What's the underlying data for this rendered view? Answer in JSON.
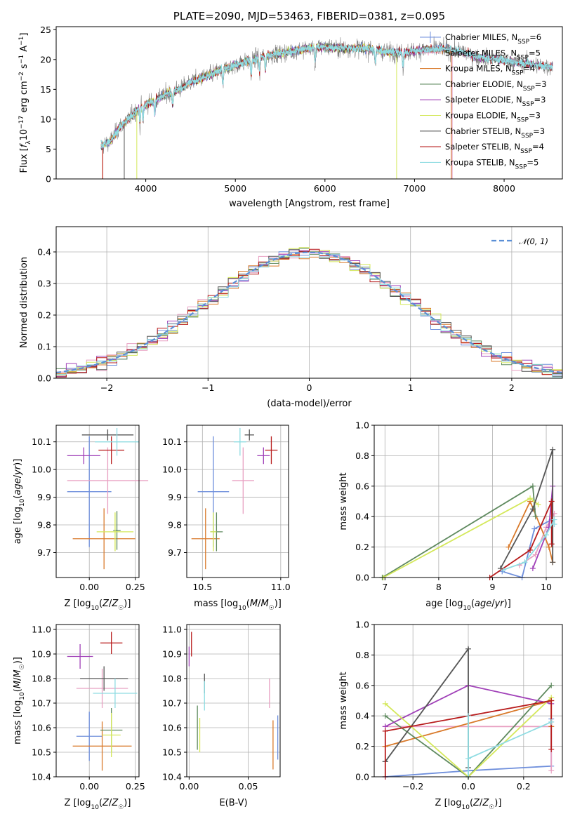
{
  "colors": {
    "Chabrier MILES": "#6f8fdc",
    "Salpeter MILES": "#e8a0c2",
    "Kroupa MILES": "#d97a2b",
    "Chabrier ELODIE": "#5f8a5f",
    "Salpeter ELODIE": "#a040b8",
    "Kroupa ELODIE": "#d4e85a",
    "Chabrier STELIB": "#555555",
    "Salpeter STELIB": "#b81c1c",
    "Kroupa STELIB": "#8fdce2"
  },
  "chart_data": [
    {
      "id": "spectrum",
      "type": "line",
      "title": "PLATE=2090, MJD=53463, FIBERID=0381, z=0.095",
      "xlabel": "wavelength [Angstrom, rest frame]",
      "ylabel": "Flux [fλ10⁻¹⁷ erg cm⁻² s⁻¹ A⁻¹]",
      "xlim": [
        3000,
        8650
      ],
      "ylim": [
        0,
        25.5
      ],
      "xticks": [
        4000,
        5000,
        6000,
        7000,
        8000
      ],
      "yticks": [
        0,
        5,
        10,
        15,
        20,
        25
      ],
      "grid": false,
      "legend_position": "top-right",
      "legend": [
        "Chabrier MILES, N_SSP=6",
        "Salpeter MILES, N_SSP=5",
        "Kroupa MILES, N_SSP=4",
        "Chabrier ELODIE, N_SSP=3",
        "Salpeter ELODIE, N_SSP=3",
        "Kroupa ELODIE, N_SSP=3",
        "Chabrier STELIB, N_SSP=3",
        "Salpeter STELIB, N_SSP=4",
        "Kroupa STELIB, N_SSP=5"
      ],
      "continuum": {
        "x": [
          3500,
          3600,
          3700,
          3800,
          3900,
          4000,
          4100,
          4200,
          4300,
          4400,
          4500,
          4700,
          4900,
          5100,
          5300,
          5500,
          5700,
          5900,
          6100,
          6300,
          6500,
          6700,
          6900,
          7100,
          7300,
          7500,
          7700,
          7900,
          8100,
          8300,
          8500
        ],
        "y": [
          5.5,
          6.2,
          8.5,
          10.0,
          11.5,
          12.5,
          13.2,
          14.0,
          14.6,
          15.2,
          16.2,
          17.3,
          18.6,
          19.5,
          20.5,
          21.0,
          21.6,
          22.1,
          22.0,
          21.9,
          21.8,
          21.3,
          21.2,
          21.6,
          21.8,
          21.4,
          20.4,
          20.1,
          19.6,
          19.2,
          18.8
        ]
      }
    },
    {
      "id": "residuals",
      "type": "line",
      "xlabel": "(data-model)/error",
      "ylabel": "Normed distribution",
      "xlim": [
        -2.5,
        2.5
      ],
      "ylim": [
        0,
        0.48
      ],
      "xticks": [
        -2,
        -1,
        0,
        1,
        2
      ],
      "yticks": [
        0.0,
        0.1,
        0.2,
        0.3,
        0.4
      ],
      "grid": true,
      "legend_position": "top-right",
      "legend": [
        "𝒩(0, 1)"
      ],
      "normal_curve": {
        "mean": 0,
        "sigma": 1
      }
    },
    {
      "id": "age-vs-Z",
      "type": "scatter",
      "xlabel": "Z [log10(Z/Z☉)]",
      "ylabel": "age  [log10(age/yr)]",
      "xlim": [
        -0.18,
        0.27
      ],
      "ylim": [
        9.61,
        10.16
      ],
      "xticks": [
        0.0,
        0.25
      ],
      "xticklabels": [
        "0.00",
        "0.25"
      ],
      "yticks": [
        9.7,
        9.8,
        9.9,
        10.0,
        10.1
      ],
      "grid": true,
      "points": [
        {
          "model": "Chabrier MILES",
          "x": 0.0,
          "y": 9.92,
          "xerr": 0.12,
          "yerr": 0.2
        },
        {
          "model": "Salpeter MILES",
          "x": 0.1,
          "y": 9.96,
          "xerr": 0.22,
          "yerr": 0.12
        },
        {
          "model": "Kroupa MILES",
          "x": 0.08,
          "y": 9.75,
          "xerr": 0.17,
          "yerr": 0.11
        },
        {
          "model": "Chabrier ELODIE",
          "x": 0.15,
          "y": 9.78,
          "xerr": 0.02,
          "yerr": 0.07
        },
        {
          "model": "Salpeter ELODIE",
          "x": -0.03,
          "y": 10.05,
          "xerr": 0.09,
          "yerr": 0.03
        },
        {
          "model": "Kroupa ELODIE",
          "x": 0.14,
          "y": 9.775,
          "xerr": 0.1,
          "yerr": 0.07
        },
        {
          "model": "Chabrier STELIB",
          "x": 0.1,
          "y": 10.125,
          "xerr": 0.14,
          "yerr": 0.02
        },
        {
          "model": "Salpeter STELIB",
          "x": 0.12,
          "y": 10.07,
          "xerr": 0.07,
          "yerr": 0.05
        },
        {
          "model": "Kroupa STELIB",
          "x": 0.15,
          "y": 10.1,
          "xerr": 0.12,
          "yerr": 0.05
        }
      ]
    },
    {
      "id": "age-vs-mass",
      "type": "scatter",
      "xlabel": "mass [log10(M/M☉)]",
      "ylabel": "",
      "xlim": [
        10.4,
        11.05
      ],
      "ylim": [
        9.61,
        10.16
      ],
      "xticks": [
        10.5,
        11.0
      ],
      "yticks": [
        9.7,
        9.8,
        9.9,
        10.0,
        10.1
      ],
      "grid": true,
      "points": [
        {
          "model": "Chabrier MILES",
          "x": 10.57,
          "y": 9.92,
          "xerr": 0.1,
          "yerr": 0.2
        },
        {
          "model": "Salpeter MILES",
          "x": 10.76,
          "y": 9.96,
          "xerr": 0.07,
          "yerr": 0.12
        },
        {
          "model": "Kroupa MILES",
          "x": 10.52,
          "y": 9.75,
          "xerr": 0.09,
          "yerr": 0.11
        },
        {
          "model": "Chabrier ELODIE",
          "x": 10.59,
          "y": 9.775,
          "xerr": 0.04,
          "yerr": 0.07
        },
        {
          "model": "Salpeter ELODIE",
          "x": 10.89,
          "y": 10.05,
          "xerr": 0.04,
          "yerr": 0.03
        },
        {
          "model": "Kroupa ELODIE",
          "x": 10.57,
          "y": 9.775,
          "xerr": 0.02,
          "yerr": 0.07
        },
        {
          "model": "Chabrier STELIB",
          "x": 10.8,
          "y": 10.125,
          "xerr": 0.03,
          "yerr": 0.02
        },
        {
          "model": "Salpeter STELIB",
          "x": 10.94,
          "y": 10.07,
          "xerr": 0.04,
          "yerr": 0.05
        },
        {
          "model": "Kroupa STELIB",
          "x": 10.74,
          "y": 10.1,
          "xerr": 0.04,
          "yerr": 0.05
        }
      ]
    },
    {
      "id": "weight-vs-age",
      "type": "line",
      "xlabel": "age  [log10(age/yr)]",
      "ylabel": "mass weight",
      "xlim": [
        6.8,
        10.3
      ],
      "ylim": [
        0,
        1.0
      ],
      "xticks": [
        7,
        8,
        9,
        10
      ],
      "yticks": [
        0.0,
        0.2,
        0.4,
        0.6,
        0.8,
        1.0
      ],
      "grid": true,
      "series": [
        {
          "model": "Chabrier MILES",
          "x": [
            9.18,
            9.55,
            9.78,
            10.1
          ],
          "y": [
            0.04,
            0.0,
            0.32,
            0.38
          ]
        },
        {
          "model": "Salpeter MILES",
          "x": [
            9.5,
            9.8,
            10.0,
            10.15
          ],
          "y": [
            0.08,
            0.15,
            0.33,
            0.42
          ]
        },
        {
          "model": "Kroupa MILES",
          "x": [
            9.3,
            9.7,
            10.05,
            10.12
          ],
          "y": [
            0.2,
            0.5,
            0.2,
            0.1
          ]
        },
        {
          "model": "Chabrier ELODIE",
          "x": [
            6.95,
            9.75,
            9.8
          ],
          "y": [
            0.0,
            0.6,
            0.4
          ]
        },
        {
          "model": "Salpeter ELODIE",
          "x": [
            9.75,
            10.05,
            10.12
          ],
          "y": [
            0.06,
            0.33,
            0.6
          ]
        },
        {
          "model": "Kroupa ELODIE",
          "x": [
            6.97,
            9.7,
            9.85
          ],
          "y": [
            0.0,
            0.52,
            0.48
          ]
        },
        {
          "model": "Chabrier STELIB",
          "x": [
            9.15,
            9.75,
            10.12,
            10.12
          ],
          "y": [
            0.06,
            0.45,
            0.84,
            0.1
          ]
        },
        {
          "model": "Salpeter STELIB",
          "x": [
            8.95,
            9.7,
            10.1,
            10.1
          ],
          "y": [
            0.0,
            0.18,
            0.5,
            0.22
          ]
        },
        {
          "model": "Kroupa STELIB",
          "x": [
            9.2,
            9.6,
            10.0,
            10.15,
            10.15
          ],
          "y": [
            0.05,
            0.1,
            0.28,
            0.38,
            0.35
          ]
        }
      ]
    },
    {
      "id": "mass-vs-Z",
      "type": "scatter",
      "xlabel": "Z [log10(Z/Z☉)]",
      "ylabel": "mass [log10(M/M☉)]",
      "xlim": [
        -0.18,
        0.27
      ],
      "ylim": [
        10.4,
        11.02
      ],
      "xticks": [
        0.0,
        0.25
      ],
      "xticklabels": [
        "0.00",
        "0.25"
      ],
      "yticks": [
        10.4,
        10.5,
        10.6,
        10.7,
        10.8,
        10.9,
        11.0
      ],
      "grid": true,
      "points": [
        {
          "model": "Chabrier MILES",
          "x": 0.0,
          "y": 10.565,
          "xerr": 0.07,
          "yerr": 0.1
        },
        {
          "model": "Salpeter MILES",
          "x": 0.07,
          "y": 10.76,
          "xerr": 0.14,
          "yerr": 0.08
        },
        {
          "model": "Kroupa MILES",
          "x": 0.07,
          "y": 10.525,
          "xerr": 0.16,
          "yerr": 0.1
        },
        {
          "model": "Chabrier ELODIE",
          "x": 0.12,
          "y": 10.59,
          "xerr": 0.06,
          "yerr": 0.09
        },
        {
          "model": "Salpeter ELODIE",
          "x": -0.05,
          "y": 10.89,
          "xerr": 0.07,
          "yerr": 0.05
        },
        {
          "model": "Kroupa ELODIE",
          "x": 0.12,
          "y": 10.57,
          "xerr": 0.05,
          "yerr": 0.09
        },
        {
          "model": "Chabrier STELIB",
          "x": 0.08,
          "y": 10.8,
          "xerr": 0.13,
          "yerr": 0.05
        },
        {
          "model": "Salpeter STELIB",
          "x": 0.12,
          "y": 10.945,
          "xerr": 0.06,
          "yerr": 0.045
        },
        {
          "model": "Kroupa STELIB",
          "x": 0.14,
          "y": 10.74,
          "xerr": 0.12,
          "yerr": 0.06
        }
      ]
    },
    {
      "id": "mass-vs-EBV",
      "type": "scatter",
      "xlabel": "E(B-V)",
      "ylabel": "",
      "xlim": [
        -0.002,
        0.077
      ],
      "ylim": [
        10.4,
        11.02
      ],
      "xticks": [
        0.0,
        0.05
      ],
      "xticklabels": [
        "0.00",
        "0.05"
      ],
      "yticks": [
        10.4,
        10.5,
        10.6,
        10.7,
        10.8,
        10.9,
        11.0
      ],
      "grid": true,
      "points": [
        {
          "model": "Chabrier MILES",
          "x": 0.075,
          "y": 10.56,
          "yerr": 0.09
        },
        {
          "model": "Salpeter MILES",
          "x": 0.068,
          "y": 10.74,
          "yerr": 0.06
        },
        {
          "model": "Kroupa MILES",
          "x": 0.071,
          "y": 10.53,
          "yerr": 0.1
        },
        {
          "model": "Chabrier ELODIE",
          "x": 0.007,
          "y": 10.6,
          "yerr": 0.09
        },
        {
          "model": "Salpeter ELODIE",
          "x": 0.0,
          "y": 10.89,
          "yerr": 0.04
        },
        {
          "model": "Kroupa ELODIE",
          "x": 0.009,
          "y": 10.57,
          "yerr": 0.07
        },
        {
          "model": "Chabrier STELIB",
          "x": 0.013,
          "y": 10.78,
          "yerr": 0.04
        },
        {
          "model": "Salpeter STELIB",
          "x": 0.002,
          "y": 10.94,
          "yerr": 0.05
        },
        {
          "model": "Kroupa STELIB",
          "x": 0.013,
          "y": 10.73,
          "yerr": 0.06
        }
      ]
    },
    {
      "id": "weight-vs-Z",
      "type": "line",
      "xlabel": "Z [log10(Z/Z☉)]",
      "ylabel": "mass weight",
      "xlim": [
        -0.34,
        0.34
      ],
      "ylim": [
        0,
        1.0
      ],
      "xticks": [
        -0.2,
        0.0,
        0.2
      ],
      "yticks": [
        0.0,
        0.2,
        0.4,
        0.6,
        0.8,
        1.0
      ],
      "grid": true,
      "series": [
        {
          "model": "Chabrier MILES",
          "x": [
            -0.3,
            0.0,
            0.3,
            0.3
          ],
          "y": [
            0.0,
            0.04,
            0.07,
            0.38
          ]
        },
        {
          "model": "Salpeter MILES",
          "x": [
            -0.3,
            0.0,
            0.3,
            0.3
          ],
          "y": [
            0.33,
            0.33,
            0.33,
            0.04
          ]
        },
        {
          "model": "Kroupa MILES",
          "x": [
            -0.3,
            -0.3,
            0.3,
            0.3
          ],
          "y": [
            0.2,
            0.2,
            0.5,
            0.33
          ]
        },
        {
          "model": "Chabrier ELODIE",
          "x": [
            -0.3,
            0.0,
            0.3
          ],
          "y": [
            0.4,
            0.0,
            0.6
          ]
        },
        {
          "model": "Salpeter ELODIE",
          "x": [
            -0.3,
            0.0,
            0.3
          ],
          "y": [
            0.33,
            0.6,
            0.48
          ]
        },
        {
          "model": "Kroupa ELODIE",
          "x": [
            -0.3,
            0.0,
            0.3
          ],
          "y": [
            0.48,
            0.0,
            0.52
          ]
        },
        {
          "model": "Chabrier STELIB",
          "x": [
            -0.3,
            -0.3,
            0.0,
            0.0
          ],
          "y": [
            0.1,
            0.1,
            0.84,
            0.06
          ]
        },
        {
          "model": "Salpeter STELIB",
          "x": [
            -0.3,
            -0.3,
            0.3,
            0.3
          ],
          "y": [
            0.0,
            0.3,
            0.5,
            0.18
          ]
        },
        {
          "model": "Kroupa STELIB",
          "x": [
            0.0,
            0.0,
            0.0,
            0.3
          ],
          "y": [
            0.0,
            0.4,
            0.12,
            0.36
          ]
        }
      ]
    }
  ]
}
